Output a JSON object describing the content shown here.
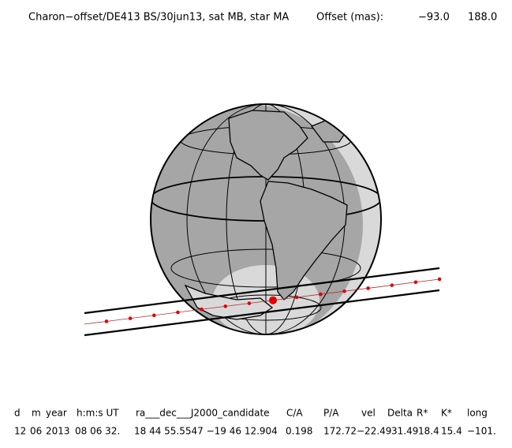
{
  "header": {
    "title": "Charon−offset/DE413 BS/30jun13, sat MB, star MA",
    "offset_label": "Offset (mas):",
    "offset_x": "−93.0",
    "offset_y": "188.0"
  },
  "table": {
    "columns": [
      "d",
      "m",
      "year",
      "h:m:s UT",
      "ra___dec___J2000_candidate",
      "C/A",
      "P/A",
      "vel",
      "Delta",
      "R*",
      "K*",
      "long"
    ],
    "rows": [
      [
        "12",
        "06",
        "2013",
        "08 06 32.",
        "18 44 55.5547 −19 46  12.904",
        "0.198",
        "172.72",
        "−22.49",
        "31.49",
        "18.4",
        "15.4",
        "−101."
      ]
    ]
  }
}
